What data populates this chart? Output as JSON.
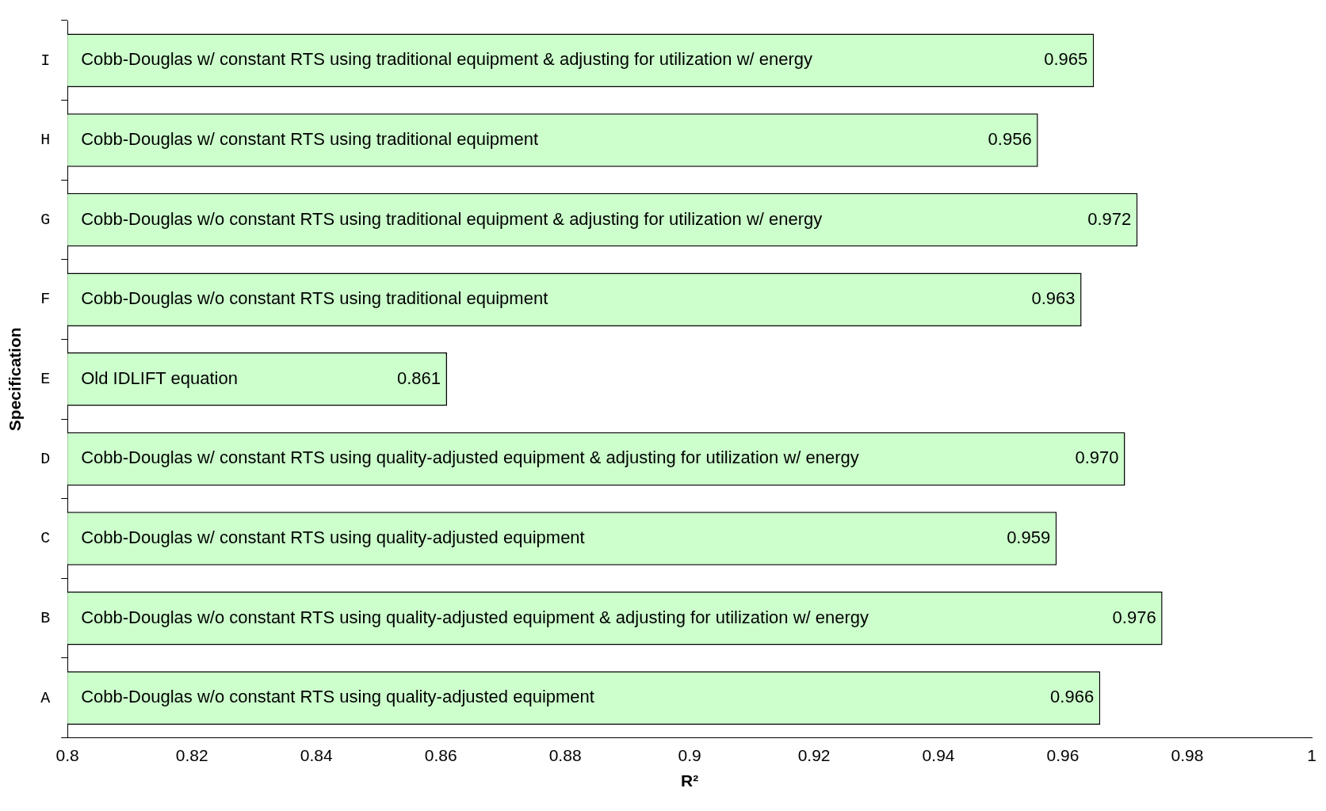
{
  "chart_data": {
    "type": "bar",
    "orientation": "horizontal",
    "xlabel": "R²",
    "ylabel": "Specification",
    "categories": [
      "I",
      "H",
      "G",
      "F",
      "E",
      "D",
      "C",
      "B",
      "A"
    ],
    "values": [
      0.965,
      0.956,
      0.972,
      0.963,
      0.861,
      0.97,
      0.959,
      0.976,
      0.966
    ],
    "value_labels": [
      "0.965",
      "0.956",
      "0.972",
      "0.963",
      "0.861",
      "0.970",
      "0.959",
      "0.976",
      "0.966"
    ],
    "color": "#ccffcc",
    "xlim": [
      0.8,
      1
    ],
    "xticks": [
      0.8,
      0.82,
      0.84,
      0.86,
      0.88,
      0.9,
      0.92,
      0.94,
      0.96,
      0.98,
      1
    ],
    "grid": false,
    "legend": false,
    "annotations": [
      "Cobb-Douglas w/ constant RTS using traditional equipment & adjusting for utilization w/ energy",
      "Cobb-Douglas w/ constant RTS using traditional equipment",
      "Cobb-Douglas w/o constant RTS using traditional equipment & adjusting for utilization w/ energy",
      "Cobb-Douglas w/o constant RTS using traditional equipment",
      "Old IDLIFT equation",
      "Cobb-Douglas w/ constant RTS using quality-adjusted equipment & adjusting for utilization w/ energy",
      "Cobb-Douglas w/ constant RTS using quality-adjusted equipment",
      "Cobb-Douglas w/o constant RTS using quality-adjusted equipment & adjusting for utilization w/ energy",
      "Cobb-Douglas w/o constant RTS using quality-adjusted equipment"
    ]
  }
}
